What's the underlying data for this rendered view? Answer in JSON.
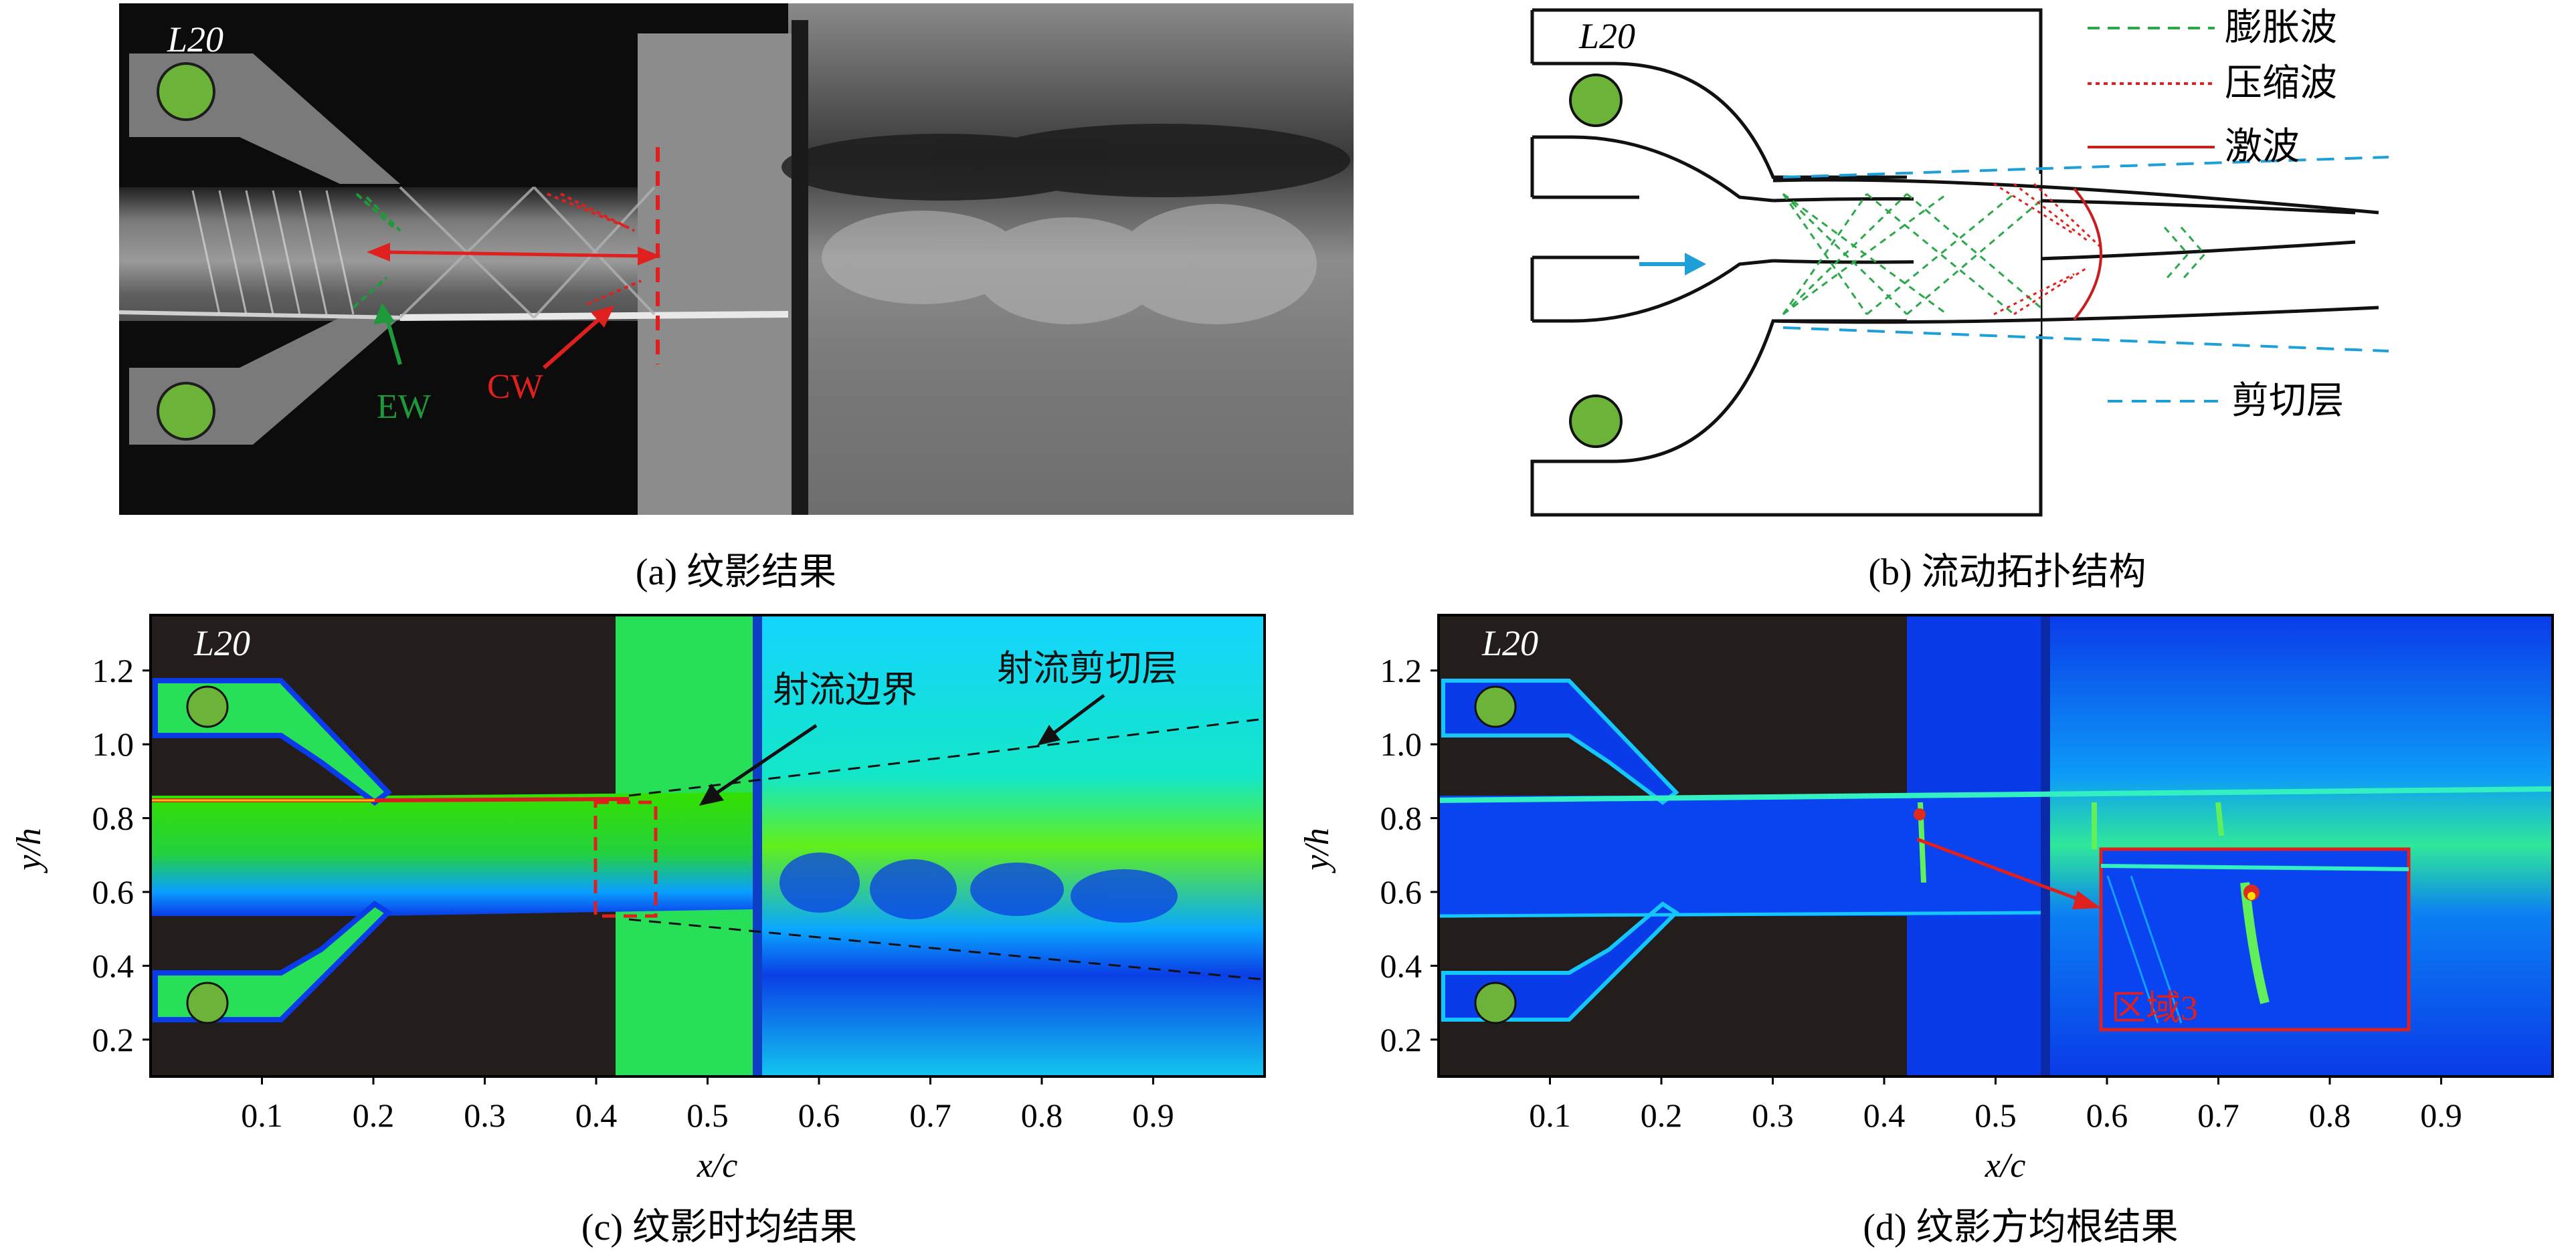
{
  "panel_a": {
    "label": "L20",
    "annotations": {
      "ew": "EW",
      "cw": "CW"
    },
    "caption": "(a) 纹影结果",
    "colors": {
      "ew": "#1f9a3a",
      "cw": "#e0201e"
    }
  },
  "panel_b": {
    "label": "L20",
    "legend": [
      {
        "text": "膨胀波",
        "style": "dashed-green",
        "color": "#2aa84a"
      },
      {
        "text": "压缩波",
        "style": "dotted-red",
        "color": "#e0201e"
      },
      {
        "text": "激波",
        "style": "solid-red",
        "color": "#c81e1e"
      },
      {
        "text": "剪切层",
        "style": "dashed-blue",
        "color": "#1e9fd8"
      }
    ],
    "caption": "(b) 流动拓扑结构"
  },
  "panel_c": {
    "label": "L20",
    "annotations": {
      "jet_boundary": "射流边界",
      "jet_shear_layer": "射流剪切层"
    },
    "x_axis_label": "x/c",
    "y_axis_label": "y/h",
    "x_ticks": [
      "0.1",
      "0.2",
      "0.3",
      "0.4",
      "0.5",
      "0.6",
      "0.7",
      "0.8",
      "0.9"
    ],
    "y_ticks": [
      "1.2",
      "1.0",
      "0.8",
      "0.6",
      "0.4",
      "0.2"
    ],
    "caption": "(c) 纹影时均结果"
  },
  "panel_d": {
    "label": "L20",
    "annotations": {
      "region": "区域3"
    },
    "x_axis_label": "x/c",
    "y_axis_label": "y/h",
    "x_ticks": [
      "0.1",
      "0.2",
      "0.3",
      "0.4",
      "0.5",
      "0.6",
      "0.7",
      "0.8",
      "0.9"
    ],
    "y_ticks": [
      "1.2",
      "1.0",
      "0.8",
      "0.6",
      "0.4",
      "0.2"
    ],
    "caption": "(d) 纹影方均根结果"
  },
  "chart_data": [
    {
      "type": "heatmap",
      "xlabel": "x/c",
      "ylabel": "y/h",
      "xticks": [
        0.1,
        0.2,
        0.3,
        0.4,
        0.5,
        0.6,
        0.7,
        0.8,
        0.9
      ],
      "yticks": [
        0.2,
        0.4,
        0.6,
        0.8,
        1.0,
        1.2
      ],
      "xlim": [
        0.0,
        1.0
      ],
      "ylim": [
        0.1,
        1.35
      ],
      "annotations": [
        "射流边界",
        "射流剪切层"
      ],
      "colormap": "jet"
    },
    {
      "type": "heatmap",
      "xlabel": "x/c",
      "ylabel": "y/h",
      "xticks": [
        0.1,
        0.2,
        0.3,
        0.4,
        0.5,
        0.6,
        0.7,
        0.8,
        0.9
      ],
      "yticks": [
        0.2,
        0.4,
        0.6,
        0.8,
        1.0,
        1.2
      ],
      "xlim": [
        0.0,
        1.0
      ],
      "ylim": [
        0.1,
        1.35
      ],
      "annotations": [
        "区域3"
      ],
      "colormap": "jet"
    }
  ]
}
